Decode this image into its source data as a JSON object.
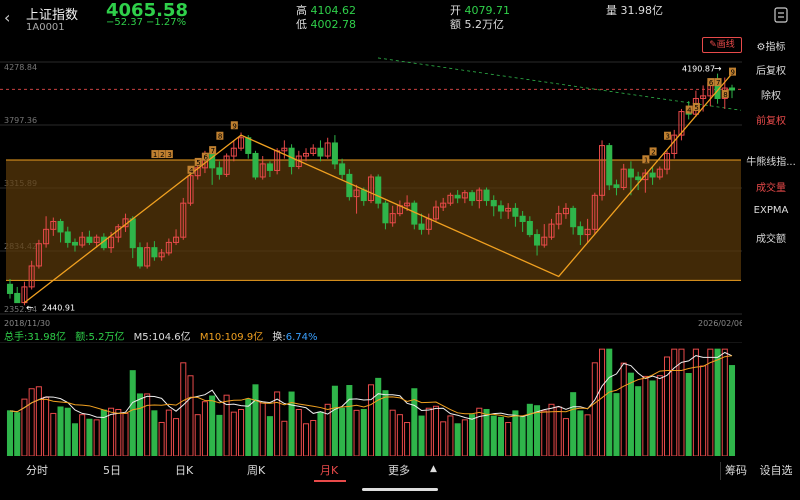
{
  "header": {
    "back_glyph": "‹",
    "title": "上证指数",
    "code": "1A0001",
    "price": "4065.58",
    "change": "−52.37",
    "change_pct": "−1.27%",
    "high_label": "高",
    "high": "4104.62",
    "low_label": "低",
    "low": "4002.78",
    "open_label": "开",
    "open": "4079.71",
    "amount_label": "额",
    "amount": "5.2万亿",
    "volume_label": "量",
    "volume": "31.98亿"
  },
  "sidebar": {
    "indicator": "指标",
    "back_adjust": "后复权",
    "no_adjust": "除权",
    "fwd_adjust": "前复权",
    "bull_bear": "牛熊线指...",
    "volume": "成交量",
    "expma": "EXPMA",
    "turnover": "成交额",
    "draw_line": "画线"
  },
  "chart": {
    "y_ticks": [
      "4278.84",
      "3797.36",
      "3315.89",
      "2834.42",
      "2352.94"
    ],
    "x_start": "2018/11/30",
    "x_end": "2026/02/06",
    "max_label": "4190.87",
    "min_label": "2440.91",
    "wave_labels_a": [
      "1",
      "2",
      "3",
      "4",
      "5",
      "6",
      "7",
      "8",
      "9"
    ],
    "wave_labels_b": [
      "1",
      "2",
      "3",
      "4",
      "5",
      "6",
      "7",
      "8",
      "9"
    ],
    "colors": {
      "up": "#e84a4a",
      "down": "#2fb54a",
      "trend": "#f0a020",
      "band": "#5c3a0a"
    }
  },
  "indicators": {
    "total_hand": "总手:31.98亿",
    "amount": "额:5.2万亿",
    "m5": "M5:104.6亿",
    "m10": "M10:109.9亿",
    "turnover_label": "换:",
    "turnover": "6.74%"
  },
  "tabs": {
    "items": [
      "分时",
      "5日",
      "日K",
      "周K",
      "月K",
      "更多"
    ],
    "more_arrow": "▲",
    "chips": "筹码",
    "settings": "设自选"
  },
  "chart_data": {
    "type": "candlestick",
    "candles": [
      [
        2580,
        2510,
        2620,
        2470
      ],
      [
        2510,
        2440,
        2560,
        2440
      ],
      [
        2440,
        2560,
        2600,
        2420
      ],
      [
        2560,
        2720,
        2760,
        2540
      ],
      [
        2720,
        2890,
        2920,
        2700
      ],
      [
        2890,
        3000,
        3100,
        2860
      ],
      [
        3000,
        3060,
        3090,
        2950
      ],
      [
        3060,
        2980,
        3080,
        2900
      ],
      [
        2980,
        2900,
        3020,
        2860
      ],
      [
        2900,
        2880,
        2930,
        2830
      ],
      [
        2880,
        2940,
        2980,
        2860
      ],
      [
        2940,
        2900,
        2990,
        2880
      ],
      [
        2900,
        2940,
        2960,
        2860
      ],
      [
        2940,
        2860,
        2970,
        2840
      ],
      [
        2860,
        2940,
        2980,
        2820
      ],
      [
        2940,
        3020,
        3040,
        2900
      ],
      [
        3020,
        3080,
        3120,
        2980
      ],
      [
        3080,
        2860,
        3100,
        2780
      ],
      [
        2860,
        2720,
        2900,
        2700
      ],
      [
        2720,
        2860,
        2900,
        2700
      ],
      [
        2860,
        2790,
        2910,
        2760
      ],
      [
        2790,
        2820,
        2850,
        2760
      ],
      [
        2820,
        2900,
        2930,
        2800
      ],
      [
        2900,
        2940,
        3000,
        2880
      ],
      [
        2940,
        3200,
        3240,
        2920
      ],
      [
        3200,
        3410,
        3450,
        3180
      ],
      [
        3410,
        3470,
        3500,
        3380
      ],
      [
        3470,
        3580,
        3600,
        3430
      ],
      [
        3580,
        3470,
        3600,
        3340
      ],
      [
        3470,
        3420,
        3520,
        3380
      ],
      [
        3420,
        3560,
        3580,
        3400
      ],
      [
        3560,
        3620,
        3680,
        3520
      ],
      [
        3620,
        3700,
        3740,
        3600
      ],
      [
        3700,
        3580,
        3720,
        3540
      ],
      [
        3580,
        3400,
        3600,
        3380
      ],
      [
        3400,
        3500,
        3560,
        3380
      ],
      [
        3500,
        3450,
        3520,
        3400
      ],
      [
        3450,
        3600,
        3620,
        3420
      ],
      [
        3600,
        3620,
        3680,
        3540
      ],
      [
        3620,
        3480,
        3650,
        3420
      ],
      [
        3480,
        3560,
        3600,
        3460
      ],
      [
        3560,
        3580,
        3620,
        3520
      ],
      [
        3580,
        3620,
        3650,
        3560
      ],
      [
        3620,
        3560,
        3680,
        3520
      ],
      [
        3560,
        3660,
        3700,
        3540
      ],
      [
        3660,
        3500,
        3720,
        3460
      ],
      [
        3500,
        3420,
        3540,
        3380
      ],
      [
        3420,
        3250,
        3460,
        3220
      ],
      [
        3250,
        3300,
        3340,
        3120
      ],
      [
        3300,
        3220,
        3320,
        3180
      ],
      [
        3220,
        3400,
        3420,
        3200
      ],
      [
        3400,
        3200,
        3420,
        3160
      ],
      [
        3200,
        3050,
        3220,
        3000
      ],
      [
        3050,
        3120,
        3180,
        3020
      ],
      [
        3120,
        3180,
        3220,
        3100
      ],
      [
        3180,
        3200,
        3260,
        3140
      ],
      [
        3200,
        3040,
        3220,
        3000
      ],
      [
        3040,
        3000,
        3120,
        2960
      ],
      [
        3000,
        3080,
        3120,
        2960
      ],
      [
        3080,
        3170,
        3220,
        3060
      ],
      [
        3170,
        3200,
        3240,
        3140
      ],
      [
        3200,
        3260,
        3280,
        3180
      ],
      [
        3260,
        3240,
        3300,
        3200
      ],
      [
        3240,
        3280,
        3300,
        3200
      ],
      [
        3280,
        3220,
        3300,
        3180
      ],
      [
        3220,
        3300,
        3320,
        3160
      ],
      [
        3300,
        3220,
        3320,
        3180
      ],
      [
        3220,
        3180,
        3260,
        3100
      ],
      [
        3180,
        3140,
        3220,
        3080
      ],
      [
        3140,
        3160,
        3200,
        3080
      ],
      [
        3160,
        3100,
        3200,
        3020
      ],
      [
        3100,
        3060,
        3140,
        2980
      ],
      [
        3060,
        2960,
        3100,
        2940
      ],
      [
        2960,
        2880,
        3000,
        2800
      ],
      [
        2880,
        2940,
        3040,
        2860
      ],
      [
        2940,
        3040,
        3080,
        2920
      ],
      [
        3040,
        3120,
        3180,
        3000
      ],
      [
        3120,
        3160,
        3200,
        3080
      ],
      [
        3160,
        3020,
        3180,
        2960
      ],
      [
        3020,
        2960,
        3060,
        2880
      ],
      [
        2960,
        3000,
        3080,
        2900
      ],
      [
        3000,
        3260,
        3280,
        2960
      ],
      [
        3260,
        3640,
        3680,
        3220
      ],
      [
        3640,
        3340,
        3660,
        3300
      ],
      [
        3340,
        3320,
        3380,
        3260
      ],
      [
        3320,
        3460,
        3500,
        3300
      ],
      [
        3460,
        3400,
        3520,
        3260
      ],
      [
        3400,
        3380,
        3440,
        3300
      ],
      [
        3380,
        3430,
        3460,
        3280
      ],
      [
        3430,
        3400,
        3480,
        3340
      ],
      [
        3400,
        3460,
        3480,
        3380
      ],
      [
        3460,
        3580,
        3600,
        3420
      ],
      [
        3580,
        3720,
        3760,
        3540
      ],
      [
        3720,
        3900,
        3920,
        3680
      ],
      [
        3900,
        3880,
        3980,
        3840
      ],
      [
        3880,
        4000,
        4060,
        3860
      ],
      [
        4000,
        4020,
        4100,
        3900
      ],
      [
        4020,
        4120,
        4150,
        3940
      ],
      [
        4120,
        4000,
        4190,
        3960
      ],
      [
        4000,
        4080,
        4160,
        3920
      ],
      [
        4080,
        4065,
        4105,
        4003
      ]
    ],
    "volume_ylim": [
      0,
      35
    ]
  }
}
